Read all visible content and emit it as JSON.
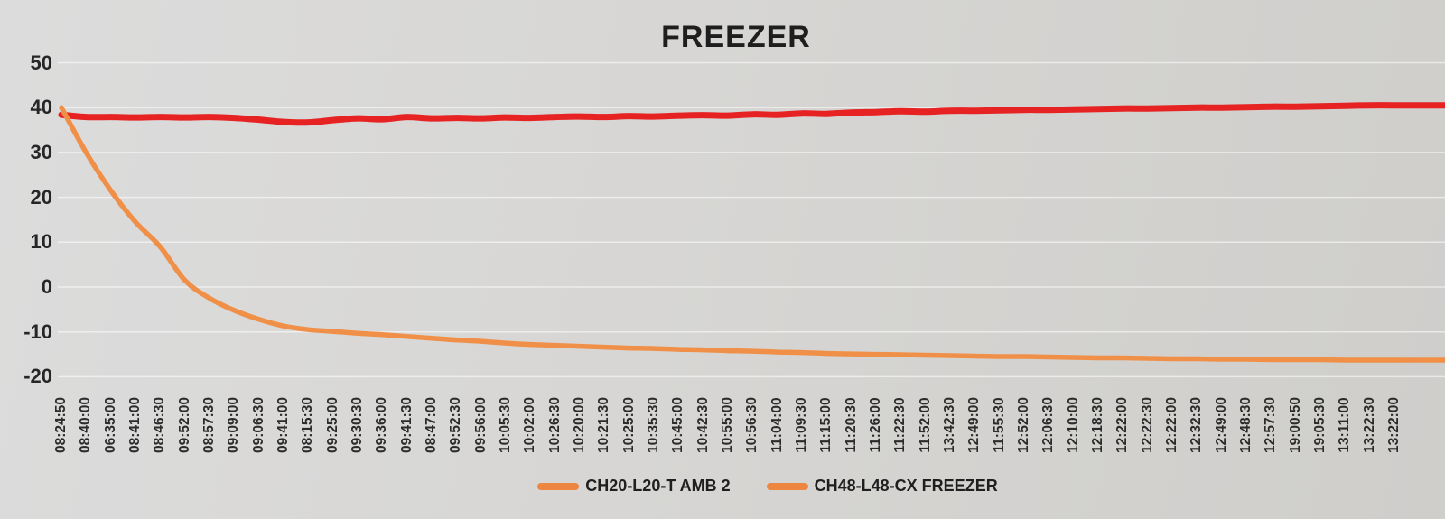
{
  "title": "FREEZER",
  "colors": {
    "amb_line": "#e62222",
    "freezer_line": "#f09048",
    "legend_marker": "#ed8640",
    "grid": "rgba(255,255,255,0.55)",
    "title_text": "#1e1e1e",
    "axis_text": "#2b2b2b"
  },
  "legend": [
    {
      "label": "CH20-L20-T AMB 2",
      "marker_color": "#ed8640"
    },
    {
      "label": "CH48-L48-CX FREEZER",
      "marker_color": "#ed8640"
    }
  ],
  "chart_data": {
    "type": "line",
    "title": "FREEZER",
    "xlabel": "",
    "ylabel": "",
    "ylim": [
      -20,
      50
    ],
    "yticks": [
      50,
      40,
      30,
      20,
      10,
      0,
      -10,
      -20
    ],
    "grid": true,
    "legend_position": "bottom",
    "x": [
      "08:24:50",
      "08:40:00",
      "06:35:00",
      "08:41:00",
      "08:46:30",
      "09:52:00",
      "08:57:30",
      "09:09:00",
      "09:06:30",
      "09:41:00",
      "08:15:30",
      "09:25:00",
      "09:30:30",
      "09:36:00",
      "09:41:30",
      "08:47:00",
      "09:52:30",
      "09:56:00",
      "10:05:30",
      "10:02:00",
      "10:26:30",
      "10:20:00",
      "10:21:30",
      "10:25:00",
      "10:35:30",
      "10:45:00",
      "10:42:30",
      "10:55:00",
      "10:56:30",
      "11:04:00",
      "11:09:30",
      "11:15:00",
      "11:20:30",
      "11:26:00",
      "11:22:30",
      "11:52:00",
      "13:42:30",
      "12:49:00",
      "11:55:30",
      "12:52:00",
      "12:06:30",
      "12:10:00",
      "12:18:30",
      "12:22:00",
      "12:22:30",
      "12:22:00",
      "12:32:30",
      "12:49:00",
      "12:48:30",
      "12:57:30",
      "19:00:50",
      "19:05:30",
      "13:11:00",
      "13:22:30",
      "13:22:00"
    ],
    "series": [
      {
        "name": "CH20-L20-T AMB 2",
        "color": "#e62222",
        "values": [
          38.4,
          37.9,
          37.9,
          37.8,
          37.9,
          37.8,
          37.9,
          37.7,
          37.3,
          36.8,
          36.7,
          37.2,
          37.6,
          37.4,
          37.9,
          37.6,
          37.7,
          37.6,
          37.8,
          37.7,
          37.9,
          38.0,
          37.9,
          38.1,
          38.0,
          38.2,
          38.3,
          38.2,
          38.5,
          38.4,
          38.7,
          38.6,
          38.9,
          39.0,
          39.2,
          39.1,
          39.3,
          39.3,
          39.4,
          39.5,
          39.5,
          39.6,
          39.7,
          39.8,
          39.8,
          39.9,
          40.0,
          40.0,
          40.1,
          40.2,
          40.2,
          40.3,
          40.4,
          40.5,
          40.5
        ]
      },
      {
        "name": "CH48-L48-CX FREEZER",
        "color": "#f09048",
        "values": [
          40.0,
          30.0,
          21.5,
          14.5,
          9.0,
          1.5,
          -2.5,
          -5.2,
          -7.2,
          -8.7,
          -9.5,
          -9.9,
          -10.3,
          -10.6,
          -11.0,
          -11.4,
          -11.8,
          -12.1,
          -12.5,
          -12.8,
          -13.0,
          -13.2,
          -13.4,
          -13.6,
          -13.7,
          -13.9,
          -14.0,
          -14.2,
          -14.3,
          -14.5,
          -14.6,
          -14.8,
          -14.9,
          -15.0,
          -15.1,
          -15.2,
          -15.3,
          -15.4,
          -15.5,
          -15.5,
          -15.6,
          -15.7,
          -15.8,
          -15.8,
          -15.9,
          -16.0,
          -16.0,
          -16.1,
          -16.1,
          -16.2,
          -16.2,
          -16.2,
          -16.3,
          -16.3,
          -16.3
        ]
      }
    ]
  }
}
